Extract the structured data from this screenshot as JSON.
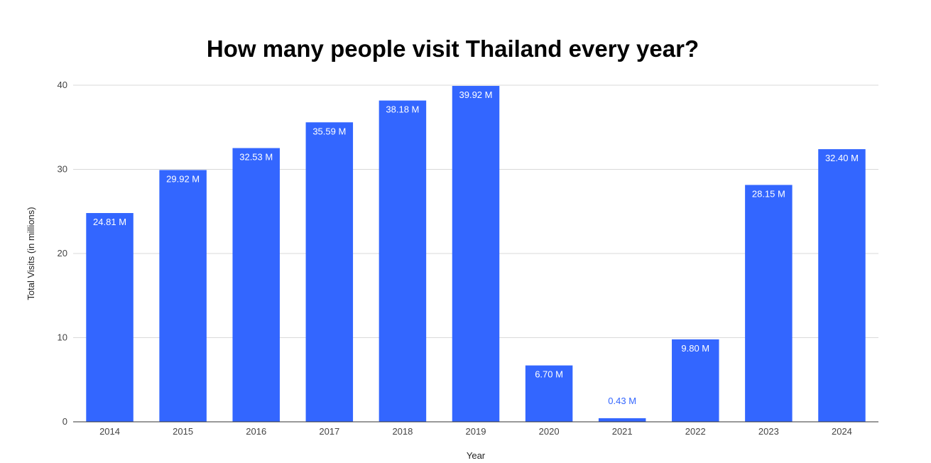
{
  "chart_data": {
    "type": "bar",
    "title": "How many people visit Thailand every year?",
    "xlabel": "Year",
    "ylabel": "Total Visits (in millions)",
    "ylim": [
      0,
      40
    ],
    "yticks": [
      0,
      10,
      20,
      30,
      40
    ],
    "grid": true,
    "legend": "none",
    "categories": [
      "2014",
      "2015",
      "2016",
      "2017",
      "2018",
      "2019",
      "2020",
      "2021",
      "2022",
      "2023",
      "2024"
    ],
    "values": [
      24.81,
      29.92,
      32.53,
      35.59,
      38.18,
      39.92,
      6.7,
      0.43,
      9.8,
      28.15,
      32.4
    ],
    "data_labels": [
      "24.81 M",
      "29.92 M",
      "32.53 M",
      "35.59 M",
      "38.18 M",
      "39.92 M",
      "6.70 M",
      "0.43 M",
      "9.80 M",
      "28.15 M",
      "32.40 M"
    ],
    "colors": {
      "bar": "#3366ff",
      "label_inside": "#ffffff",
      "label_outside": "#3366ff",
      "grid": "#d9d9d9",
      "axis": "#333333"
    }
  }
}
